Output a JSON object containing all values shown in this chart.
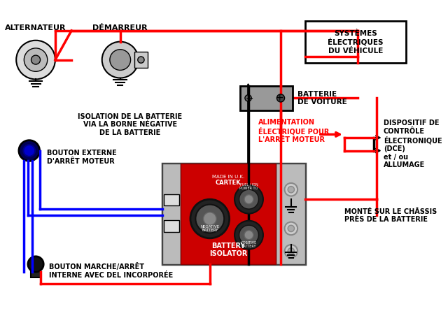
{
  "bg_color": "#ffffff",
  "title": "",
  "labels": {
    "alternateur": "ALTERNATEUR",
    "demarreur": "DÉMARREUR",
    "systemes": "SYSTÈMES\nÉLECTRIQUES\nDU VÉHICULE",
    "batterie": "BATTERIE\nDE VOITURE",
    "isolation": "ISOLATION DE LA BATTERIE\nVIA LA BORNE NÉGATIVE\nDE LA BATTERIE",
    "bouton_externe": "BOUTON EXTERNE\nD'ARRÊT MOTEUR",
    "alimentation": "ALIMENTATION\nÉLECTRIQUE POUR\nL'ARRÊT MOTEUR",
    "dispositif": "DISPOSITIF DE\nCONTRÔLE\nÉLECTRONIQUE\n(DCE)\net / ou\nALLUMAGE",
    "monte": "MONTÉ SUR LE CHÂSSIS\nPRÈS DE LA BATTERIE",
    "bouton_interne": "BOUTON MARCHE/ARRÊT\nINTERNE AVEC DEL INCORPORÉE",
    "battery_isolator": "BATTERY\nISOLATOR",
    "cartek": "CARTEK",
    "made_in": "MADE IN U.K."
  },
  "colors": {
    "red": "#ff0000",
    "blue": "#0000ff",
    "black": "#000000",
    "gray": "#808080",
    "dark_gray": "#555555",
    "light_gray": "#aaaaaa",
    "device_red": "#cc0000",
    "device_gray": "#999999",
    "white": "#ffffff"
  }
}
